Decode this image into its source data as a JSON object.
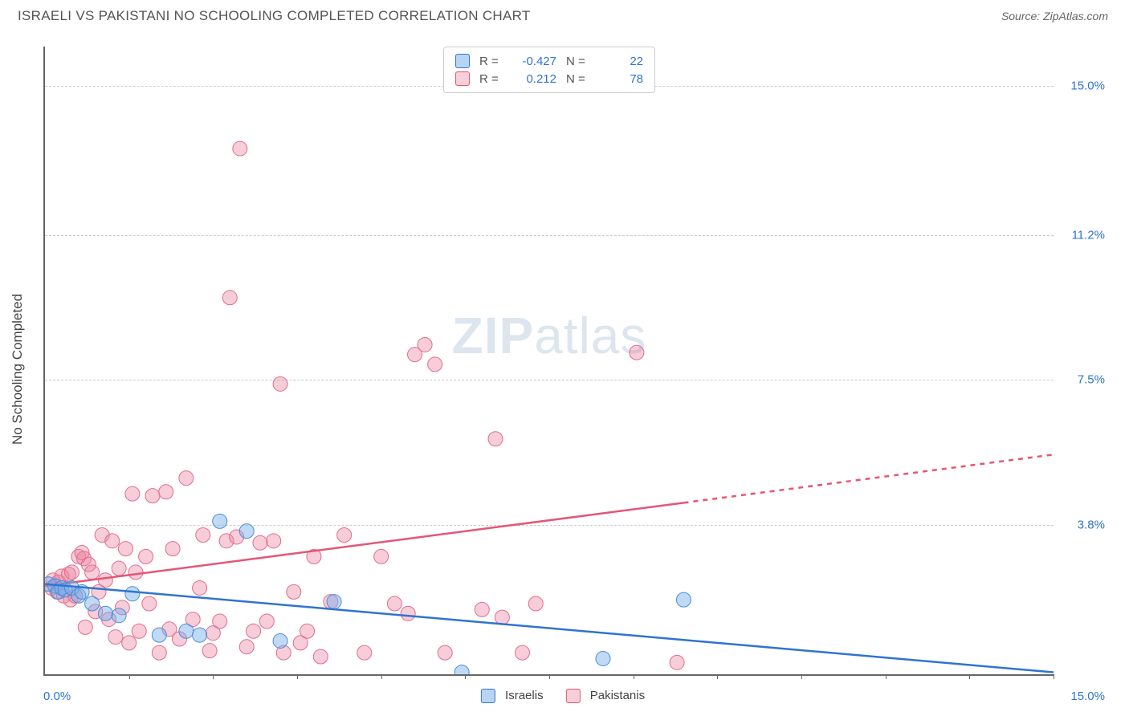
{
  "title": "ISRAELI VS PAKISTANI NO SCHOOLING COMPLETED CORRELATION CHART",
  "source": "Source: ZipAtlas.com",
  "y_axis_label": "No Schooling Completed",
  "watermark": {
    "z": "ZIP",
    "a": "atlas"
  },
  "chart": {
    "type": "scatter",
    "background_color": "#ffffff",
    "grid_color": "#cccccc",
    "axis_color": "#666666",
    "xlim": [
      0,
      15
    ],
    "ylim": [
      0,
      16
    ],
    "y_gridlines": [
      3.8,
      7.5,
      11.2,
      15.0
    ],
    "y_tick_labels": [
      "3.8%",
      "7.5%",
      "11.2%",
      "15.0%"
    ],
    "x_ticks": [
      1.25,
      2.5,
      3.75,
      5.0,
      6.25,
      7.5,
      8.75,
      10.0,
      11.25,
      12.5,
      13.75,
      15.0
    ],
    "x_start_label": "0.0%",
    "x_end_label": "15.0%",
    "legend_bottom": [
      {
        "label": "Israelis",
        "fill": "#b9d4f2",
        "stroke": "#2f74d0"
      },
      {
        "label": "Pakistanis",
        "fill": "#f6cfd9",
        "stroke": "#e45676"
      }
    ],
    "stat_box": [
      {
        "fill": "#b9d4f2",
        "stroke": "#2f74d0",
        "R": "-0.427",
        "N": "22"
      },
      {
        "fill": "#f6cfd9",
        "stroke": "#e45676",
        "R": "0.212",
        "N": "78"
      }
    ],
    "series": {
      "israelis": {
        "fill": "rgba(116,173,235,0.45)",
        "stroke": "#4a8dd8",
        "marker_r": 9,
        "line_color": "#2f74d0",
        "line_width": 2.5,
        "trend": {
          "x1": 0.0,
          "y1": 2.3,
          "x2": 15.0,
          "y2": 0.05
        },
        "trend_dash_from_x": null,
        "pts": [
          [
            0.05,
            2.3
          ],
          [
            0.15,
            2.25
          ],
          [
            0.2,
            2.1
          ],
          [
            0.25,
            2.2
          ],
          [
            0.3,
            2.15
          ],
          [
            0.4,
            2.2
          ],
          [
            0.5,
            2.0
          ],
          [
            0.55,
            2.1
          ],
          [
            0.7,
            1.8
          ],
          [
            0.9,
            1.55
          ],
          [
            1.1,
            1.5
          ],
          [
            1.3,
            2.05
          ],
          [
            1.7,
            1.0
          ],
          [
            2.1,
            1.1
          ],
          [
            2.3,
            1.0
          ],
          [
            2.6,
            3.9
          ],
          [
            3.0,
            3.65
          ],
          [
            3.5,
            0.85
          ],
          [
            4.3,
            1.85
          ],
          [
            6.2,
            0.05
          ],
          [
            8.3,
            0.4
          ],
          [
            9.5,
            1.9
          ]
        ]
      },
      "pakistanis": {
        "fill": "rgba(236,131,160,0.40)",
        "stroke": "#e16d8e",
        "marker_r": 9,
        "line_color": "#e45676",
        "line_width": 2.5,
        "trend": {
          "x1": 0.0,
          "y1": 2.25,
          "x2": 15.0,
          "y2": 5.6
        },
        "trend_dash_from_x": 9.5,
        "pts": [
          [
            0.1,
            2.2
          ],
          [
            0.12,
            2.4
          ],
          [
            0.18,
            2.1
          ],
          [
            0.2,
            2.35
          ],
          [
            0.25,
            2.5
          ],
          [
            0.28,
            2.0
          ],
          [
            0.35,
            2.55
          ],
          [
            0.38,
            1.9
          ],
          [
            0.4,
            2.6
          ],
          [
            0.45,
            2.0
          ],
          [
            0.5,
            3.0
          ],
          [
            0.55,
            3.1
          ],
          [
            0.58,
            2.95
          ],
          [
            0.6,
            1.2
          ],
          [
            0.65,
            2.8
          ],
          [
            0.7,
            2.6
          ],
          [
            0.75,
            1.6
          ],
          [
            0.8,
            2.1
          ],
          [
            0.85,
            3.55
          ],
          [
            0.9,
            2.4
          ],
          [
            0.95,
            1.4
          ],
          [
            1.0,
            3.4
          ],
          [
            1.05,
            0.95
          ],
          [
            1.1,
            2.7
          ],
          [
            1.15,
            1.7
          ],
          [
            1.2,
            3.2
          ],
          [
            1.25,
            0.8
          ],
          [
            1.3,
            4.6
          ],
          [
            1.35,
            2.6
          ],
          [
            1.4,
            1.1
          ],
          [
            1.5,
            3.0
          ],
          [
            1.55,
            1.8
          ],
          [
            1.6,
            4.55
          ],
          [
            1.7,
            0.55
          ],
          [
            1.8,
            4.65
          ],
          [
            1.85,
            1.15
          ],
          [
            1.9,
            3.2
          ],
          [
            2.0,
            0.9
          ],
          [
            2.1,
            5.0
          ],
          [
            2.2,
            1.4
          ],
          [
            2.3,
            2.2
          ],
          [
            2.35,
            3.55
          ],
          [
            2.45,
            0.6
          ],
          [
            2.5,
            1.05
          ],
          [
            2.6,
            1.35
          ],
          [
            2.7,
            3.4
          ],
          [
            2.75,
            9.6
          ],
          [
            2.85,
            3.5
          ],
          [
            2.9,
            13.4
          ],
          [
            3.0,
            0.7
          ],
          [
            3.1,
            1.1
          ],
          [
            3.2,
            3.35
          ],
          [
            3.3,
            1.35
          ],
          [
            3.4,
            3.4
          ],
          [
            3.5,
            7.4
          ],
          [
            3.55,
            0.55
          ],
          [
            3.7,
            2.1
          ],
          [
            3.8,
            0.8
          ],
          [
            3.9,
            1.1
          ],
          [
            4.0,
            3.0
          ],
          [
            4.1,
            0.45
          ],
          [
            4.25,
            1.85
          ],
          [
            4.45,
            3.55
          ],
          [
            4.75,
            0.55
          ],
          [
            5.0,
            3.0
          ],
          [
            5.2,
            1.8
          ],
          [
            5.4,
            1.55
          ],
          [
            5.5,
            8.15
          ],
          [
            5.65,
            8.4
          ],
          [
            5.8,
            7.9
          ],
          [
            5.95,
            0.55
          ],
          [
            6.5,
            1.65
          ],
          [
            6.7,
            6.0
          ],
          [
            6.8,
            1.45
          ],
          [
            7.1,
            0.55
          ],
          [
            7.3,
            1.8
          ],
          [
            8.8,
            8.2
          ],
          [
            9.4,
            0.3
          ]
        ]
      }
    }
  }
}
